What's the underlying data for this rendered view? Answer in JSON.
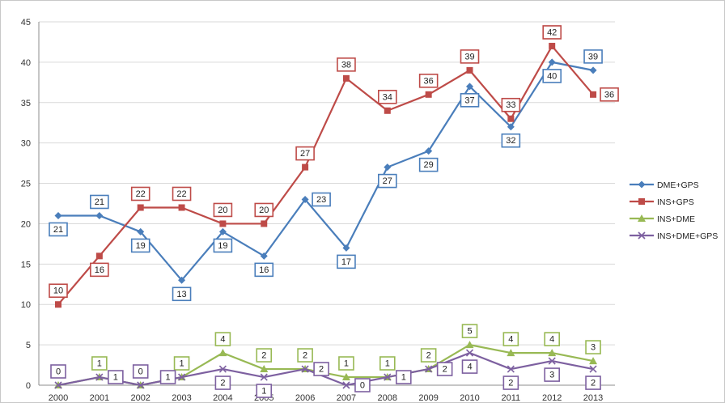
{
  "chart_data": {
    "type": "line",
    "title": "",
    "xlabel": "",
    "ylabel": "",
    "ylim": [
      0,
      45
    ],
    "yticks": [
      0,
      5,
      10,
      15,
      20,
      25,
      30,
      35,
      40,
      45
    ],
    "grid": true,
    "legend_position": "right",
    "categories": [
      "2000",
      "2001",
      "2002",
      "2003",
      "2004",
      "2005",
      "2006",
      "2007",
      "2008",
      "2009",
      "2010",
      "2011",
      "2012",
      "2013"
    ],
    "series": [
      {
        "name": "DME+GPS",
        "color": "#4a7ebb",
        "marker": "diamond",
        "values": [
          21,
          21,
          19,
          13,
          19,
          16,
          23,
          17,
          27,
          29,
          37,
          32,
          40,
          39
        ],
        "label_pos": [
          "below",
          "above",
          "below",
          "below",
          "below",
          "below",
          "right",
          "below",
          "below",
          "below",
          "below",
          "below",
          "below",
          "above"
        ]
      },
      {
        "name": "INS+GPS",
        "color": "#be4b48",
        "marker": "square",
        "values": [
          10,
          16,
          22,
          22,
          20,
          20,
          27,
          38,
          34,
          36,
          39,
          33,
          42,
          36
        ],
        "label_pos": [
          "above",
          "below",
          "above",
          "above",
          "above",
          "above",
          "above",
          "above",
          "above",
          "above",
          "above",
          "above",
          "above",
          "right"
        ]
      },
      {
        "name": "INS+DME",
        "color": "#98b954",
        "marker": "triangle",
        "values": [
          0,
          1,
          0,
          1,
          4,
          2,
          2,
          1,
          1,
          2,
          5,
          4,
          4,
          3
        ],
        "label_pos": [
          "none",
          "above",
          "none",
          "above",
          "above",
          "above",
          "above",
          "above",
          "above",
          "above",
          "above",
          "above",
          "above",
          "above"
        ]
      },
      {
        "name": "INS+DME+GPS",
        "color": "#7d60a0",
        "marker": "x",
        "values": [
          0,
          1,
          0,
          1,
          2,
          1,
          2,
          0,
          1,
          2,
          4,
          2,
          3,
          2
        ],
        "label_pos": [
          "above",
          "right",
          "above",
          "left",
          "below",
          "below",
          "right",
          "right",
          "right",
          "right",
          "below",
          "below",
          "below",
          "below"
        ]
      }
    ]
  }
}
